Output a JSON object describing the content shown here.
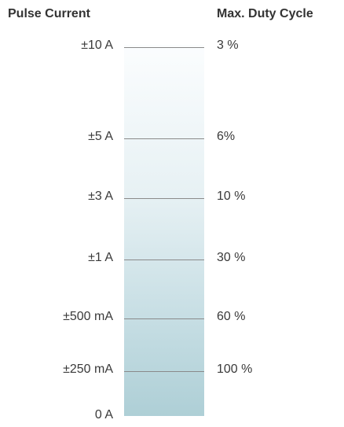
{
  "headers": {
    "left": "Pulse Current",
    "right": "Max. Duty Cycle"
  },
  "levels": [
    {
      "current": "±10 A",
      "duty": "3 %"
    },
    {
      "current": "±5 A",
      "duty": "6%"
    },
    {
      "current": "±3 A",
      "duty": "10 %"
    },
    {
      "current": "±1 A",
      "duty": "30 %"
    },
    {
      "current": "±500 mA",
      "duty": "60 %"
    },
    {
      "current": "±250 mA",
      "duty": "100 %"
    }
  ],
  "baseline": {
    "current": "0 A"
  },
  "colors": {
    "gradient_top": "#fbfdfe",
    "gradient_bottom": "#aecfd6",
    "tick": "#8a8a8a",
    "text": "#3a3a3a"
  }
}
